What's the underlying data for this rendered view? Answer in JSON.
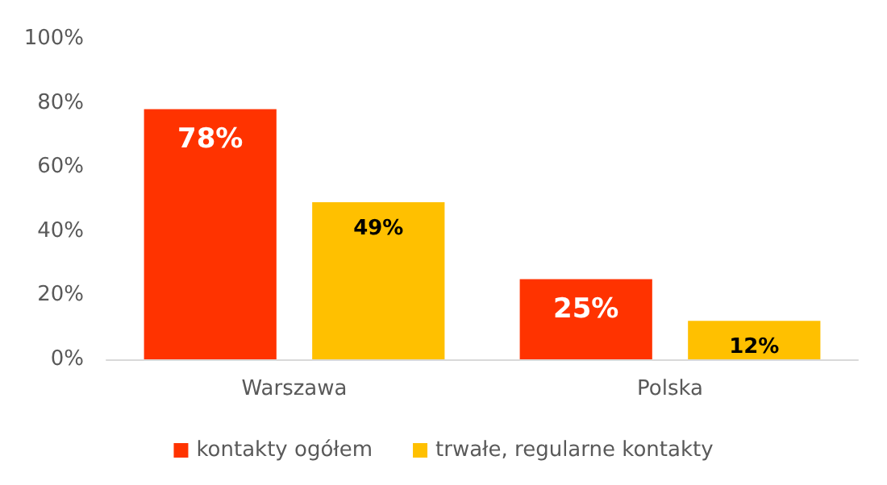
{
  "chart_data": {
    "type": "bar",
    "categories": [
      "Warszawa",
      "Polska"
    ],
    "series": [
      {
        "name": "kontakty ogółem",
        "color": "#ff3300",
        "values": [
          78,
          25
        ],
        "value_labels": [
          "78%",
          "25%"
        ]
      },
      {
        "name": "trwałe, regularne kontakty",
        "color": "#ffc000",
        "values": [
          49,
          12
        ],
        "value_labels": [
          "49%",
          "12%"
        ]
      }
    ],
    "ylim": [
      0,
      100
    ],
    "yticks": [
      {
        "value": 0,
        "label": "0%"
      },
      {
        "value": 20,
        "label": "20%"
      },
      {
        "value": 40,
        "label": "40%"
      },
      {
        "value": 60,
        "label": "60%"
      },
      {
        "value": 80,
        "label": "80%"
      },
      {
        "value": 100,
        "label": "100%"
      }
    ],
    "grid": false,
    "legend": "bottom"
  }
}
